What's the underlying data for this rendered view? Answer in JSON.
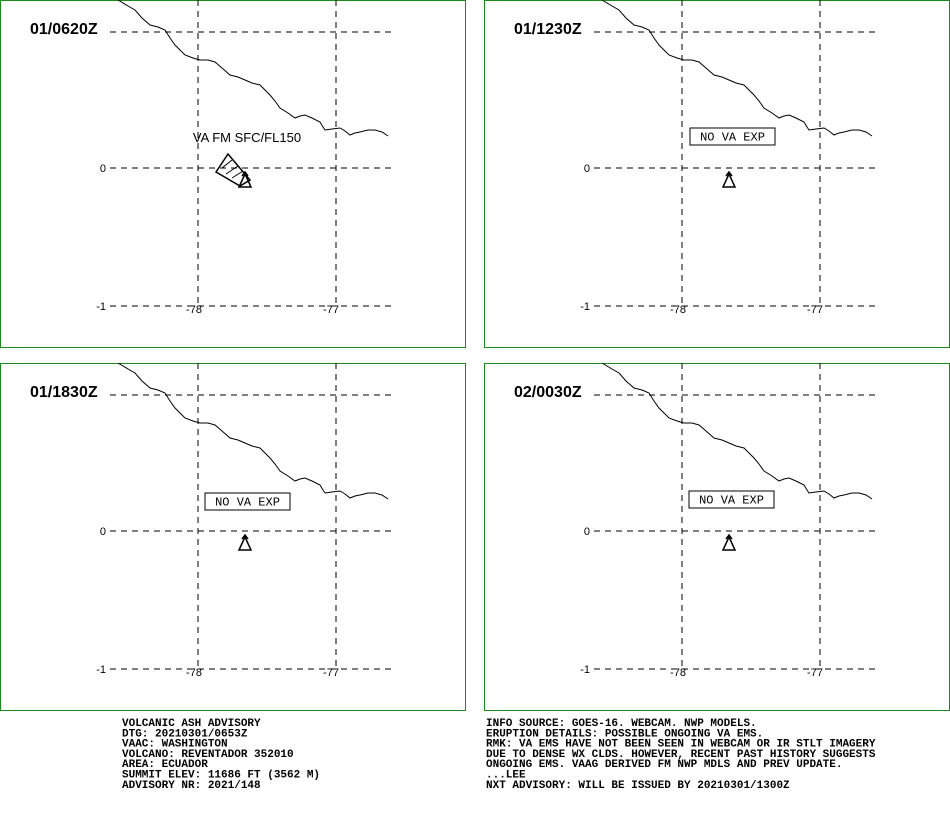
{
  "panels": [
    {
      "time": "01/0620Z",
      "annotation": "VA FM SFC/FL150",
      "lat_labels": [
        "0",
        "-1"
      ],
      "lon_labels": [
        "-78",
        "-77"
      ]
    },
    {
      "time": "01/1230Z",
      "annotation": "NO VA EXP",
      "lat_labels": [
        "0",
        "-1"
      ],
      "lon_labels": [
        "-78",
        "-77"
      ]
    },
    {
      "time": "01/1830Z",
      "annotation": "NO VA EXP",
      "lat_labels": [
        "0",
        "-1"
      ],
      "lon_labels": [
        "-78",
        "-77"
      ]
    },
    {
      "time": "02/0030Z",
      "annotation": "NO VA EXP",
      "lat_labels": [
        "0",
        "-1"
      ],
      "lon_labels": [
        "-78",
        "-77"
      ]
    }
  ],
  "advisory": {
    "left": [
      "VOLCANIC ASH ADVISORY",
      "DTG: 20210301/0653Z",
      "VAAC: WASHINGTON",
      "VOLCANO: REVENTADOR 352010",
      "AREA: ECUADOR",
      "SUMMIT ELEV: 11686 FT (3562 M)",
      "ADVISORY NR: 2021/148"
    ],
    "right": [
      "INFO SOURCE: GOES-16. WEBCAM. NWP MODELS.",
      "ERUPTION DETAILS: POSSIBLE ONGOING VA EMS.",
      "RMK: VA EMS HAVE NOT BEEN SEEN IN WEBCAM OR IR STLT IMAGERY",
      "DUE TO DENSE WX CLDS. HOWEVER, RECENT PAST HISTORY SUGGESTS",
      "ONGOING EMS. VAAG DERIVED FM NWP MDLS AND PREV UPDATE.",
      "...LEE",
      "NXT ADVISORY: WILL BE ISSUED BY 20210301/1300Z"
    ]
  }
}
